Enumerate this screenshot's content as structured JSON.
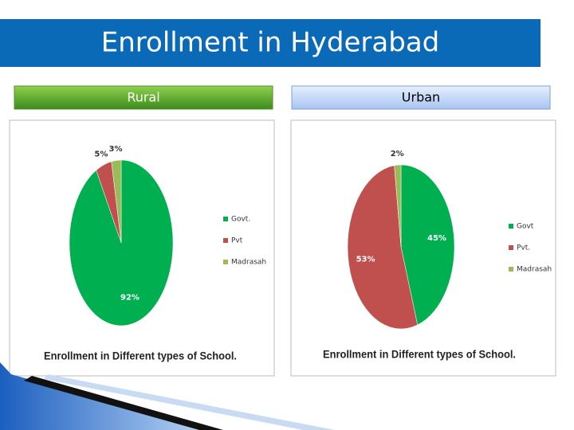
{
  "slide_title": "Enrollment in Hyderabad",
  "chart_data": [
    {
      "type": "pie",
      "header": "Rural",
      "title": "Enrollment in Different  types of School.",
      "categories": [
        "Govt.",
        "Pvt",
        "Madrasah"
      ],
      "values": [
        92,
        5,
        3
      ],
      "value_labels": [
        "92%",
        "5%",
        "3%"
      ],
      "colors": [
        "#00b050",
        "#c0504d",
        "#9bbb59"
      ],
      "legend": "right"
    },
    {
      "type": "pie",
      "header": "Urban",
      "title": "Enrollment in Different types of School.",
      "categories": [
        "Govt",
        "Pvt.",
        "Madrasah"
      ],
      "values": [
        45,
        53,
        2
      ],
      "value_labels": [
        "45%",
        "53%",
        "2%"
      ],
      "colors": [
        "#00b050",
        "#c0504d",
        "#9bbb59"
      ],
      "legend": "right"
    }
  ]
}
